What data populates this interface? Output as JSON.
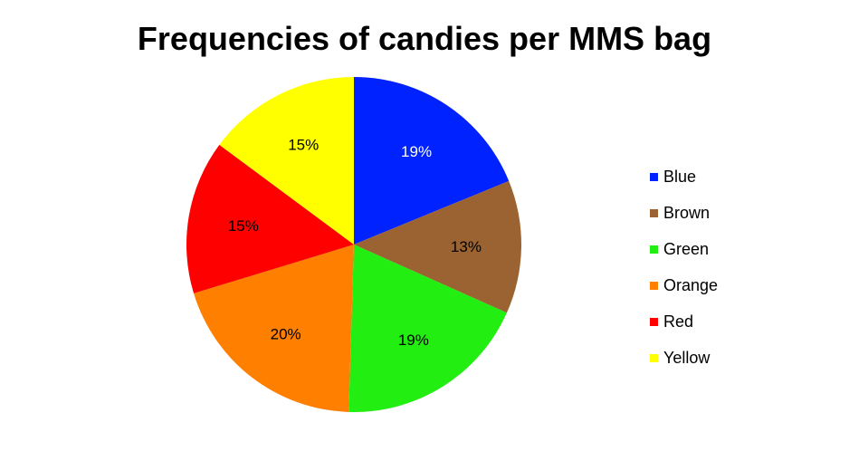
{
  "chart_data": {
    "type": "pie",
    "title": "Frequencies of candies per MMS bag",
    "legend_position": "right",
    "slices": [
      {
        "name": "Blue",
        "value": 19,
        "label": "19%",
        "color": "#0022ff"
      },
      {
        "name": "Brown",
        "value": 13,
        "label": "13%",
        "color": "#9a6331"
      },
      {
        "name": "Green",
        "value": 19,
        "label": "19%",
        "color": "#22ee11"
      },
      {
        "name": "Orange",
        "value": 20,
        "label": "20%",
        "color": "#ff7f00"
      },
      {
        "name": "Red",
        "value": 15,
        "label": "15%",
        "color": "#ff0000"
      },
      {
        "name": "Yellow",
        "value": 15,
        "label": "15%",
        "color": "#ffff00"
      }
    ]
  }
}
